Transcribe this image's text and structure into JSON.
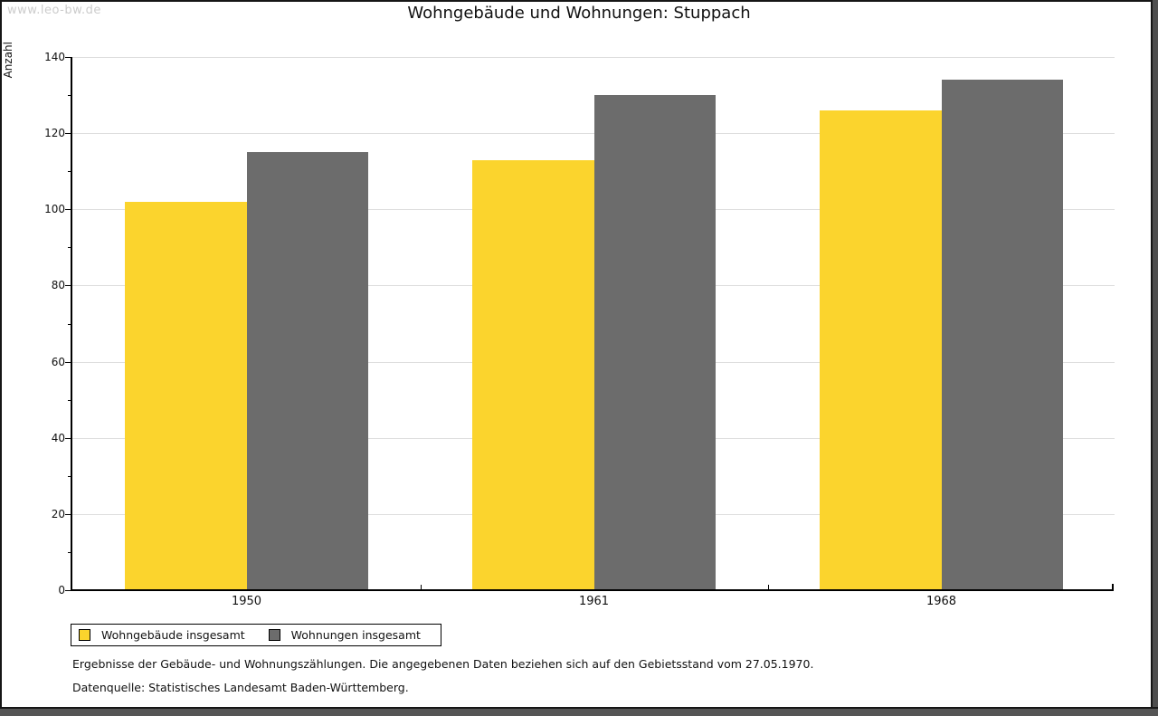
{
  "window": {
    "watermark": "www.leo-bw.de"
  },
  "chart_data": {
    "type": "bar",
    "title": "Wohngebäude und Wohnungen: Stuppach",
    "xlabel": "",
    "ylabel": "Anzahl",
    "categories": [
      "1950",
      "1961",
      "1968"
    ],
    "series": [
      {
        "name": "Wohngebäude insgesamt",
        "color": "#FBD42D",
        "values": [
          102,
          113,
          126
        ]
      },
      {
        "name": "Wohnungen insgesamt",
        "color": "#6C6C6C",
        "values": [
          115,
          130,
          134
        ]
      }
    ],
    "ylim": [
      0,
      140
    ],
    "y_tick_step": 20,
    "y_minor_tick_step": 10,
    "grid": true,
    "gridline_color": "#DDDDDD",
    "axis_color": "#000000",
    "legend_position": "bottom-left"
  },
  "notes": {
    "line1": "Ergebnisse der Gebäude- und Wohnungszählungen. Die angegebenen Daten beziehen sich auf den Gebietsstand vom 27.05.1970.",
    "line2": "Datenquelle: Statistisches Landesamt Baden-Württemberg."
  }
}
